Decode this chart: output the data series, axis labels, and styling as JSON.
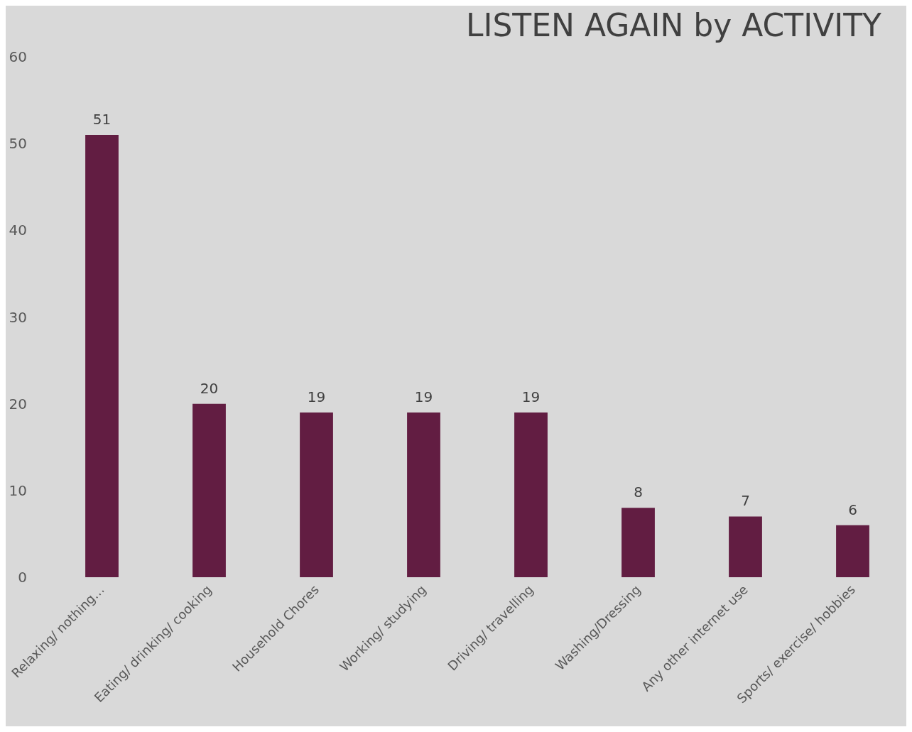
{
  "chart_data": {
    "type": "bar",
    "title": "LISTEN AGAIN by ACTIVITY",
    "categories": [
      "Relaxing/ nothing…",
      "Eating/ drinking/ cooking",
      "Household Chores",
      "Working/ studying",
      "Driving/ travelling",
      "Washing/Dressing",
      "Any other internet use",
      "Sports/ exercise/ hobbies"
    ],
    "values": [
      51,
      20,
      19,
      19,
      19,
      8,
      7,
      6
    ],
    "color": "#621d42",
    "ylim": [
      0,
      60
    ],
    "yticks": [
      0,
      10,
      20,
      30,
      40,
      50,
      60
    ],
    "data_labels": true,
    "grid": false
  }
}
